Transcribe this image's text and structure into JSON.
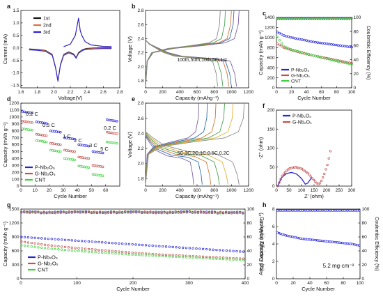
{
  "colors": {
    "blue": "#2323d8",
    "red": "#c0504d",
    "green": "#3fcf3f",
    "black": "#111111",
    "orange": "#d4704a"
  },
  "chart_data": [
    {
      "panel": "a",
      "type": "line",
      "xlabel": "Voltage(V)",
      "ylabel": "Current (mA)",
      "xlim": [
        1.6,
        2.8
      ],
      "ylim": [
        -1.6,
        1.5
      ],
      "xticks": [
        "1.6",
        "1.8",
        "2.0",
        "2.2",
        "2.4",
        "2.6",
        "2.8"
      ],
      "yticks": [
        "1.5",
        "1.0",
        "0.5",
        "0.0",
        "-0.5",
        "-1.0",
        "-1.5"
      ],
      "legend": [
        "1st",
        "2nd",
        "3rd"
      ],
      "series": [
        {
          "name": "1st",
          "x": [
            1.7,
            1.8,
            1.9,
            1.98,
            2.02,
            2.05,
            2.08,
            2.12,
            2.18,
            2.24,
            2.27,
            2.3,
            2.35,
            2.4,
            2.5,
            2.6,
            2.7
          ],
          "y": [
            -0.08,
            -0.1,
            -0.14,
            -0.3,
            -0.8,
            -1.35,
            -0.7,
            -0.3,
            -0.2,
            -0.28,
            -0.42,
            -0.22,
            -0.1,
            -0.06,
            -0.04,
            -0.03,
            -0.03
          ]
        },
        {
          "name": "2nd",
          "x": [
            1.7,
            1.8,
            1.9,
            1.98,
            2.02,
            2.05,
            2.08,
            2.12,
            2.18,
            2.24,
            2.27,
            2.3,
            2.35,
            2.4,
            2.5,
            2.6,
            2.7
          ],
          "y": [
            -0.08,
            -0.1,
            -0.14,
            -0.3,
            -0.8,
            -1.35,
            -0.7,
            -0.3,
            -0.2,
            -0.28,
            -0.42,
            -0.22,
            -0.1,
            -0.06,
            -0.04,
            -0.03,
            -0.03
          ]
        },
        {
          "name": "3rd",
          "x": [
            1.7,
            1.8,
            1.9,
            1.98,
            2.02,
            2.05,
            2.08,
            2.12,
            2.18,
            2.24,
            2.27,
            2.3,
            2.35,
            2.4,
            2.5,
            2.6,
            2.7
          ],
          "y": [
            -0.08,
            -0.1,
            -0.14,
            -0.3,
            -0.8,
            -1.35,
            -0.7,
            -0.3,
            -0.2,
            -0.28,
            -0.42,
            -0.22,
            -0.1,
            -0.06,
            -0.04,
            -0.03,
            -0.03
          ]
        }
      ]
    },
    {
      "panel": "b",
      "type": "line",
      "xlabel": "Capacity (mAhg⁻¹)",
      "ylabel": "Voltage (V)",
      "xlim": [
        0,
        1200
      ],
      "ylim": [
        1.7,
        2.8
      ],
      "xticks": [
        "0",
        "200",
        "400",
        "600",
        "800",
        "1000",
        "1200"
      ],
      "yticks": [
        "1.8",
        "2.0",
        "2.2",
        "2.4",
        "2.6",
        "2.8"
      ],
      "annotation": "100th,50th,10th,5th,1st",
      "curves": [
        {
          "cycle": "1st",
          "discharge_end": 1060,
          "charge_end": 1090
        },
        {
          "cycle": "5th",
          "discharge_end": 1000,
          "charge_end": 1030
        },
        {
          "cycle": "10th",
          "discharge_end": 970,
          "charge_end": 1000
        },
        {
          "cycle": "50th",
          "discharge_end": 900,
          "charge_end": 930
        },
        {
          "cycle": "100th",
          "discharge_end": 840,
          "charge_end": 870
        }
      ]
    },
    {
      "panel": "c",
      "type": "scatter",
      "xlabel": "Cycle Number",
      "ylabel": "Capacity (mAh g⁻¹)",
      "y2label": "Coulombic Efficiency (%)",
      "xlim": [
        0,
        100
      ],
      "ylim": [
        0,
        1400
      ],
      "y2lim": [
        0,
        100
      ],
      "xticks": [
        "0",
        "20",
        "40",
        "60",
        "80",
        "100"
      ],
      "yticks": [
        "0",
        "200",
        "400",
        "600",
        "800",
        "1000",
        "1200",
        "1400"
      ],
      "y2ticks": [
        "0",
        "20",
        "40",
        "60",
        "80",
        "100"
      ],
      "legend": [
        "P-Nb₂O₅",
        "G-Nb₂O₅",
        "CNT"
      ],
      "series": [
        {
          "name": "P-Nb₂O₅",
          "x": [
            1,
            10,
            20,
            30,
            40,
            50,
            60,
            70,
            80,
            90,
            100
          ],
          "y": [
            1110,
            1040,
            1000,
            970,
            940,
            910,
            890,
            870,
            850,
            830,
            810
          ]
        },
        {
          "name": "G-Nb₂O₅",
          "x": [
            1,
            10,
            20,
            30,
            40,
            50,
            60,
            70,
            80,
            90,
            100
          ],
          "y": [
            880,
            800,
            750,
            710,
            670,
            640,
            610,
            580,
            550,
            520,
            490
          ]
        },
        {
          "name": "CNT",
          "x": [
            1,
            10,
            20,
            30,
            40,
            50,
            60,
            70,
            80,
            90,
            100
          ],
          "y": [
            1010,
            820,
            760,
            720,
            680,
            640,
            600,
            570,
            530,
            500,
            470
          ]
        }
      ],
      "efficiency": {
        "x": [
          1,
          10,
          20,
          30,
          40,
          50,
          60,
          70,
          80,
          90,
          100
        ],
        "y": [
          99,
          99,
          99,
          99,
          99,
          99,
          99,
          99,
          99,
          99,
          99
        ]
      }
    },
    {
      "panel": "d",
      "type": "scatter",
      "xlabel": "Cycle Number",
      "ylabel": "Capacity (mAh g⁻¹)",
      "xlim": [
        0,
        70
      ],
      "ylim": [
        0,
        1200
      ],
      "xticks": [
        "0",
        "10",
        "20",
        "30",
        "40",
        "50",
        "60"
      ],
      "yticks": [
        "0",
        "100",
        "200",
        "300",
        "400",
        "500",
        "600",
        "700",
        "800",
        "900",
        "1000",
        "1100",
        "1200"
      ],
      "rate_labels": [
        "0.2 C",
        "0.5 C",
        "1 C",
        "2 C",
        "3 C",
        "5 C",
        "0.2 C"
      ],
      "legend": [
        "P-Nb₂O₅",
        "G-Nb₂O₅",
        "CNT"
      ],
      "series": [
        {
          "name": "P-Nb₂O₅",
          "x": [
            5,
            15,
            25,
            35,
            45,
            55,
            65
          ],
          "y": [
            1080,
            930,
            800,
            700,
            600,
            500,
            960
          ]
        },
        {
          "name": "G-Nb₂O₅",
          "x": [
            5,
            15,
            25,
            35,
            45,
            55,
            65
          ],
          "y": [
            940,
            750,
            620,
            520,
            420,
            300,
            780
          ]
        },
        {
          "name": "CNT",
          "x": [
            5,
            15,
            25,
            35,
            45,
            55,
            65
          ],
          "y": [
            830,
            660,
            520,
            400,
            290,
            170,
            640
          ]
        }
      ]
    },
    {
      "panel": "e",
      "type": "line",
      "xlabel": "Capacity (mAhg⁻¹)",
      "ylabel": "Voltage (V)",
      "xlim": [
        0,
        1200
      ],
      "ylim": [
        1.7,
        2.8
      ],
      "xticks": [
        "0",
        "200",
        "400",
        "600",
        "800",
        "1000",
        "1200"
      ],
      "yticks": [
        "1.8",
        "2.0",
        "2.2",
        "2.4",
        "2.6",
        "2.8"
      ],
      "annotation": "5C,3C,2C,1C,0.5C,0.2C",
      "curves": [
        {
          "rate": "5C",
          "discharge_end": 560,
          "charge_end": 620
        },
        {
          "rate": "3C",
          "discharge_end": 660,
          "charge_end": 720
        },
        {
          "rate": "2C",
          "discharge_end": 760,
          "charge_end": 820
        },
        {
          "rate": "1C",
          "discharge_end": 860,
          "charge_end": 920
        },
        {
          "rate": "0.5C",
          "discharge_end": 960,
          "charge_end": 1020
        },
        {
          "rate": "0.2C",
          "discharge_end": 1090,
          "charge_end": 1150
        }
      ]
    },
    {
      "panel": "f",
      "type": "line",
      "xlabel": "Z' (ohm)",
      "ylabel": "-Z'' (ohm)",
      "xlim": [
        0,
        300
      ],
      "ylim": [
        0,
        200
      ],
      "xticks": [
        "0",
        "50",
        "100",
        "150",
        "200",
        "250",
        "300"
      ],
      "yticks": [
        "0",
        "50",
        "100",
        "150",
        "200"
      ],
      "legend": [
        "P-Nb₂O₅",
        "G-Nb₂O₅"
      ],
      "series": [
        {
          "name": "P-Nb₂O₅",
          "x": [
            5,
            20,
            40,
            60,
            80,
            100,
            115,
            125,
            140
          ],
          "y": [
            0,
            22,
            33,
            36,
            32,
            20,
            5,
            8,
            22
          ]
        },
        {
          "name": "G-Nb₂O₅",
          "x": [
            5,
            25,
            50,
            75,
            100,
            125,
            150,
            165,
            175,
            190,
            205,
            215
          ],
          "y": [
            0,
            30,
            46,
            50,
            46,
            34,
            15,
            5,
            8,
            30,
            60,
            92
          ]
        }
      ]
    },
    {
      "panel": "g",
      "type": "scatter",
      "xlabel": "Cycle Number",
      "ylabel": "Capacity (mAh g⁻¹)",
      "y2label": "Coulombic Efficiency (%)",
      "xlim": [
        0,
        400
      ],
      "ylim": [
        0,
        1500
      ],
      "y2lim": [
        0,
        100
      ],
      "xticks": [
        "0",
        "100",
        "200",
        "300",
        "400"
      ],
      "yticks": [
        "0",
        "300",
        "600",
        "900",
        "1200",
        "1500"
      ],
      "y2ticks": [
        "0",
        "20",
        "40",
        "60",
        "80",
        "100"
      ],
      "legend": [
        "P-Nb₂O₅",
        "G-Nb₂O₅",
        "CNT"
      ],
      "series": [
        {
          "name": "P-Nb₂O₅",
          "x": [
            1,
            50,
            100,
            150,
            200,
            250,
            300,
            350,
            400
          ],
          "y": [
            900,
            860,
            820,
            780,
            740,
            700,
            660,
            620,
            580
          ]
        },
        {
          "name": "G-Nb₂O₅",
          "x": [
            1,
            50,
            100,
            150,
            200,
            250,
            300,
            350,
            400
          ],
          "y": [
            800,
            720,
            660,
            610,
            560,
            520,
            490,
            460,
            430
          ]
        },
        {
          "name": "CNT",
          "x": [
            1,
            50,
            100,
            150,
            200,
            250,
            300,
            350,
            400
          ],
          "y": [
            720,
            650,
            600,
            560,
            520,
            490,
            460,
            430,
            400
          ]
        }
      ],
      "efficiency": {
        "x": [
          1,
          50,
          100,
          150,
          200,
          250,
          300,
          350,
          400
        ],
        "y": [
          96,
          95,
          96,
          95,
          96,
          95,
          96,
          95,
          95
        ]
      }
    },
    {
      "panel": "h",
      "type": "scatter",
      "xlabel": "Cycle Number",
      "ylabel": "Areal Capacity (mAh cm⁻²)",
      "y2label": "Coulombic Efficiency (%)",
      "xlim": [
        0,
        100
      ],
      "ylim": [
        0,
        8
      ],
      "y2lim": [
        0,
        100
      ],
      "xticks": [
        "0",
        "20",
        "40",
        "60",
        "80",
        "100"
      ],
      "yticks": [
        "0",
        "2",
        "4",
        "6",
        "8"
      ],
      "y2ticks": [
        "0",
        "20",
        "40",
        "60",
        "80",
        "100"
      ],
      "annotation": "5.2 mg·cm⁻²",
      "series": [
        {
          "name": "",
          "x": [
            1,
            10,
            20,
            30,
            40,
            50,
            60,
            70,
            80,
            90,
            100
          ],
          "y": [
            5.3,
            5.0,
            4.8,
            4.6,
            4.5,
            4.4,
            4.3,
            4.2,
            4.1,
            4.0,
            3.8
          ]
        }
      ],
      "efficiency": {
        "x": [
          1,
          10,
          20,
          30,
          40,
          50,
          60,
          70,
          80,
          90,
          100
        ],
        "y": [
          98,
          98,
          98,
          98,
          98,
          98,
          98,
          98,
          98,
          98,
          98
        ]
      }
    }
  ]
}
